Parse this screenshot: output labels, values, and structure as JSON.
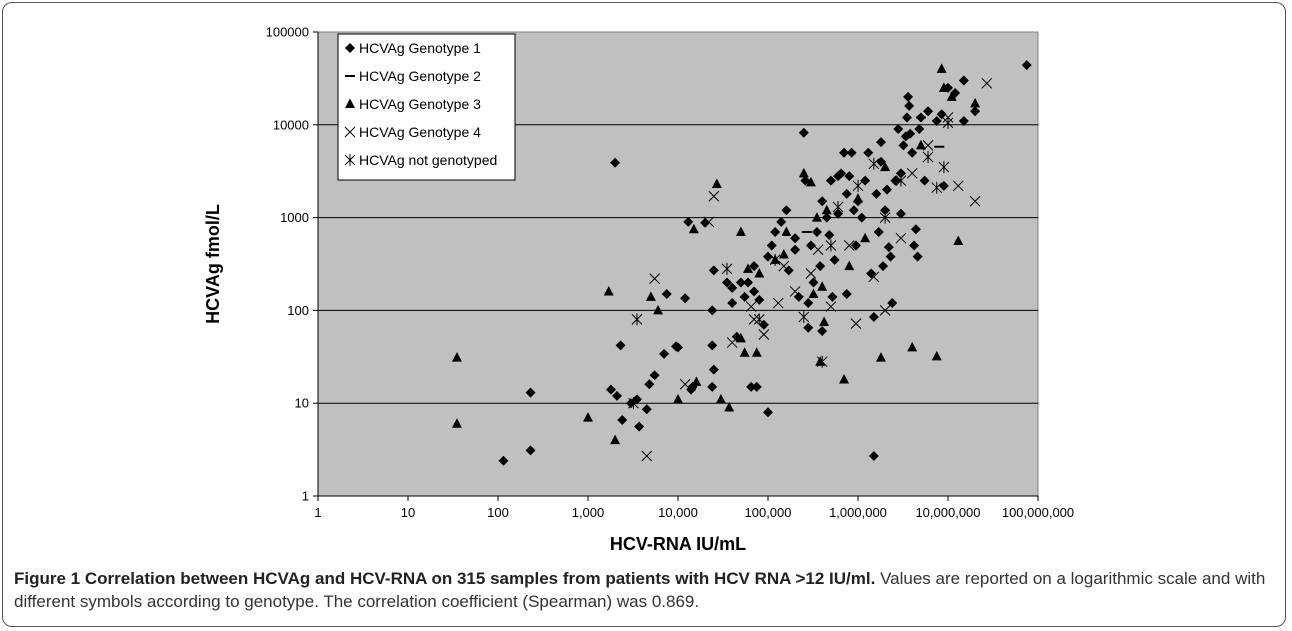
{
  "figure": {
    "caption_lead": "Figure 1 Correlation between HCVAg and HCV-RNA on 315 samples from patients with HCV RNA >12 IU/ml.",
    "caption_text": " Values are reported on a logarithmic scale and with different symbols according to genotype. The correlation coefficient (Spearman) was 0.869."
  },
  "colors": {
    "plot_background": "#c0c0c0",
    "gridline": "#000000",
    "marker": "#000000"
  },
  "chart_data": {
    "type": "scatter",
    "title": "",
    "xlabel": "HCV-RNA IU/mL",
    "ylabel": "HCVAg fmol/L",
    "xscale": "log",
    "yscale": "log",
    "xlim": [
      1,
      100000000
    ],
    "ylim": [
      1,
      100000
    ],
    "x_ticks": [
      "1",
      "10",
      "100",
      "1,000",
      "10,000",
      "100,000",
      "1,000,000",
      "10,000,000",
      "100,000,000"
    ],
    "y_ticks": [
      "1",
      "10",
      "100",
      "1000",
      "10000",
      "100000"
    ],
    "grid": "horizontal major lines",
    "legend_position": "top-left",
    "series": [
      {
        "name": "HCVAg Genotype 1",
        "marker": "diamond",
        "points": [
          [
            115,
            2.4
          ],
          [
            230,
            13
          ],
          [
            230,
            3.1
          ],
          [
            2000,
            3900
          ],
          [
            2300,
            42
          ],
          [
            1800,
            14
          ],
          [
            2100,
            12
          ],
          [
            2400,
            6.6
          ],
          [
            3000,
            10
          ],
          [
            3500,
            11
          ],
          [
            3700,
            5.6
          ],
          [
            4500,
            8.6
          ],
          [
            4800,
            16
          ],
          [
            5500,
            20
          ],
          [
            7000,
            34
          ],
          [
            7500,
            150
          ],
          [
            9500,
            41
          ],
          [
            10000,
            40
          ],
          [
            12000,
            135
          ],
          [
            13000,
            900
          ],
          [
            14000,
            14
          ],
          [
            14500,
            15
          ],
          [
            20000,
            880
          ],
          [
            24000,
            100
          ],
          [
            24000,
            42
          ],
          [
            24000,
            15
          ],
          [
            25000,
            23
          ],
          [
            25000,
            270
          ],
          [
            35000,
            200
          ],
          [
            40000,
            120
          ],
          [
            40000,
            175
          ],
          [
            45000,
            52
          ],
          [
            50000,
            200
          ],
          [
            55000,
            140
          ],
          [
            60000,
            200
          ],
          [
            65000,
            15
          ],
          [
            70000,
            160
          ],
          [
            70000,
            300
          ],
          [
            75000,
            15
          ],
          [
            80000,
            130
          ],
          [
            90000,
            70
          ],
          [
            100000,
            8
          ],
          [
            100000,
            380
          ],
          [
            110000,
            500
          ],
          [
            120000,
            700
          ],
          [
            140000,
            900
          ],
          [
            160000,
            1200
          ],
          [
            170000,
            270
          ],
          [
            200000,
            600
          ],
          [
            200000,
            450
          ],
          [
            220000,
            140
          ],
          [
            250000,
            8200
          ],
          [
            260000,
            2500
          ],
          [
            280000,
            65
          ],
          [
            280000,
            120
          ],
          [
            300000,
            500
          ],
          [
            320000,
            200
          ],
          [
            350000,
            700
          ],
          [
            380000,
            300
          ],
          [
            400000,
            1500
          ],
          [
            400000,
            60
          ],
          [
            450000,
            1000
          ],
          [
            480000,
            650
          ],
          [
            500000,
            2500
          ],
          [
            520000,
            140
          ],
          [
            550000,
            350
          ],
          [
            600000,
            1100
          ],
          [
            600000,
            2800
          ],
          [
            650000,
            3000
          ],
          [
            700000,
            5000
          ],
          [
            750000,
            150
          ],
          [
            750000,
            1800
          ],
          [
            800000,
            2800
          ],
          [
            850000,
            5000
          ],
          [
            900000,
            1200
          ],
          [
            950000,
            500
          ],
          [
            1000000,
            1500
          ],
          [
            1100000,
            1000
          ],
          [
            1200000,
            2500
          ],
          [
            1300000,
            5000
          ],
          [
            1400000,
            250
          ],
          [
            1500000,
            2.7
          ],
          [
            1500000,
            85
          ],
          [
            1600000,
            1800
          ],
          [
            1700000,
            700
          ],
          [
            1800000,
            4000
          ],
          [
            1800000,
            6500
          ],
          [
            1900000,
            300
          ],
          [
            2000000,
            1200
          ],
          [
            2100000,
            2000
          ],
          [
            2200000,
            480
          ],
          [
            2300000,
            380
          ],
          [
            2400000,
            120
          ],
          [
            2600000,
            2500
          ],
          [
            2800000,
            9000
          ],
          [
            3000000,
            3000
          ],
          [
            3000000,
            1100
          ],
          [
            3200000,
            6000
          ],
          [
            3400000,
            7500
          ],
          [
            3500000,
            12000
          ],
          [
            3600000,
            20000
          ],
          [
            3700000,
            16000
          ],
          [
            3800000,
            8000
          ],
          [
            4000000,
            5000
          ],
          [
            4200000,
            500
          ],
          [
            4400000,
            750
          ],
          [
            4600000,
            380
          ],
          [
            4800000,
            9000
          ],
          [
            5000000,
            12000
          ],
          [
            5500000,
            2500
          ],
          [
            6000000,
            14000
          ],
          [
            7500000,
            11000
          ],
          [
            8500000,
            13000
          ],
          [
            9000000,
            2200
          ],
          [
            10000000,
            25000
          ],
          [
            12000000,
            22000
          ],
          [
            15000000,
            11000
          ],
          [
            15000000,
            30000
          ],
          [
            20000000,
            14000
          ],
          [
            75000000,
            44000
          ]
        ]
      },
      {
        "name": "HCVAg Genotype 2",
        "marker": "dash",
        "points": [
          [
            270000,
            700
          ],
          [
            5000000,
            12000
          ],
          [
            8000000,
            5800
          ]
        ]
      },
      {
        "name": "HCVAg Genotype 3",
        "marker": "triangle",
        "points": [
          [
            35,
            31
          ],
          [
            35,
            6
          ],
          [
            1000,
            7
          ],
          [
            1700,
            160
          ],
          [
            2000,
            4
          ],
          [
            5000,
            140
          ],
          [
            6000,
            100
          ],
          [
            10000,
            11
          ],
          [
            15000,
            750
          ],
          [
            16000,
            17
          ],
          [
            27000,
            2300
          ],
          [
            30000,
            11
          ],
          [
            37000,
            9
          ],
          [
            50000,
            700
          ],
          [
            50000,
            50
          ],
          [
            55000,
            35
          ],
          [
            60000,
            280
          ],
          [
            75000,
            35
          ],
          [
            80000,
            250
          ],
          [
            120000,
            350
          ],
          [
            150000,
            400
          ],
          [
            160000,
            700
          ],
          [
            250000,
            3000
          ],
          [
            300000,
            2400
          ],
          [
            320000,
            150
          ],
          [
            350000,
            1000
          ],
          [
            380000,
            28
          ],
          [
            400000,
            180
          ],
          [
            420000,
            75
          ],
          [
            450000,
            1200
          ],
          [
            700000,
            18
          ],
          [
            800000,
            300
          ],
          [
            1000000,
            1600
          ],
          [
            1200000,
            600
          ],
          [
            1800000,
            31
          ],
          [
            2000000,
            3500
          ],
          [
            4000000,
            40
          ],
          [
            5000000,
            6000
          ],
          [
            7500000,
            32
          ],
          [
            8500000,
            40000
          ],
          [
            9000000,
            25000
          ],
          [
            11000000,
            20000
          ],
          [
            13000000,
            560
          ],
          [
            20000000,
            17000
          ]
        ]
      },
      {
        "name": "HCVAg Genotype 4",
        "marker": "x",
        "points": [
          [
            4500,
            2.7
          ],
          [
            5500,
            220
          ],
          [
            12000,
            16
          ],
          [
            22000,
            900
          ],
          [
            25000,
            1700
          ],
          [
            40000,
            45
          ],
          [
            65000,
            110
          ],
          [
            70000,
            80
          ],
          [
            90000,
            55
          ],
          [
            130000,
            120
          ],
          [
            150000,
            300
          ],
          [
            200000,
            160
          ],
          [
            300000,
            250
          ],
          [
            360000,
            450
          ],
          [
            500000,
            110
          ],
          [
            800000,
            500
          ],
          [
            950000,
            72
          ],
          [
            1500000,
            230
          ],
          [
            2000000,
            100
          ],
          [
            3000000,
            600
          ],
          [
            4000000,
            3000
          ],
          [
            6000000,
            6000
          ],
          [
            10000000,
            12000
          ],
          [
            13000000,
            2200
          ],
          [
            20000000,
            1500
          ],
          [
            27000000,
            28000
          ]
        ]
      },
      {
        "name": "HCVAg not genotyped",
        "marker": "asterisk",
        "points": [
          [
            3200,
            10
          ],
          [
            3500,
            80
          ],
          [
            35000,
            280
          ],
          [
            80000,
            80
          ],
          [
            120000,
            350
          ],
          [
            250000,
            85
          ],
          [
            400000,
            28
          ],
          [
            500000,
            500
          ],
          [
            600000,
            1300
          ],
          [
            1000000,
            2200
          ],
          [
            1500000,
            3800
          ],
          [
            2000000,
            1000
          ],
          [
            3000000,
            2500
          ],
          [
            6000000,
            4500
          ],
          [
            7500000,
            2100
          ],
          [
            9000000,
            3500
          ],
          [
            10000000,
            10500
          ]
        ]
      }
    ]
  }
}
